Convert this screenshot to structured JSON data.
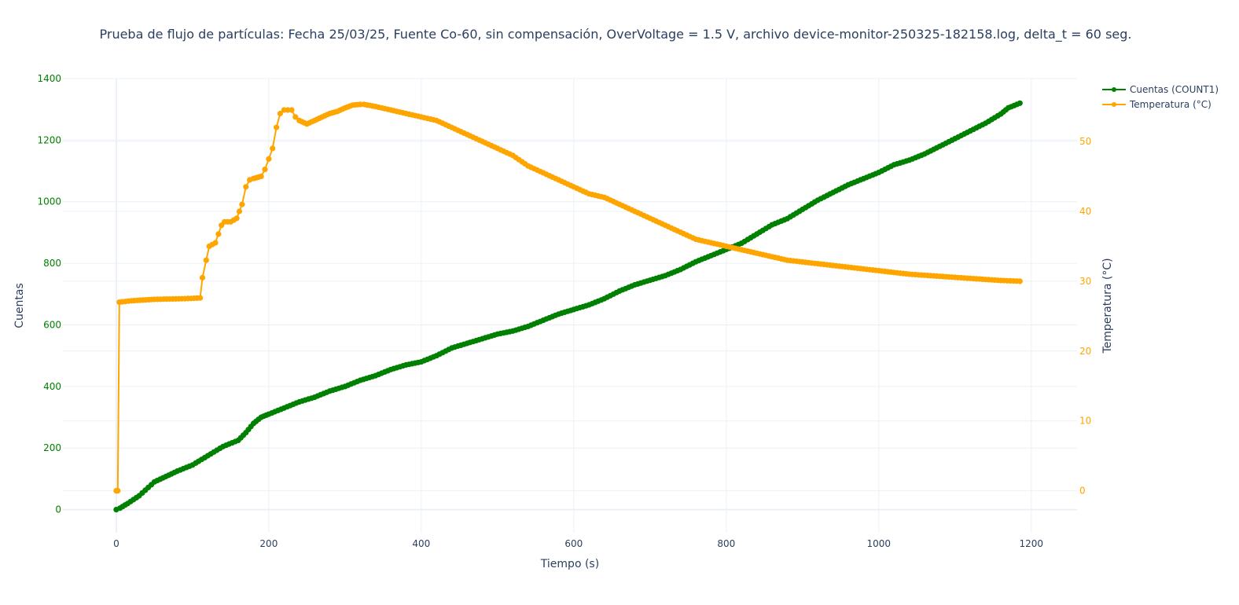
{
  "chart_data": {
    "type": "line",
    "title": "Prueba de flujo de partículas: Fecha 25/03/25, Fuente Co-60, sin compensación, OverVoltage = 1.5 V, archivo device-monitor-250325-182158.log, delta_t = 60 seg.",
    "xlabel": "Tiempo (s)",
    "ylabel": "Cuentas",
    "y2label": "Temperatura (°C)",
    "xlim": [
      -70,
      1260
    ],
    "ylim": [
      -75,
      1400
    ],
    "y2lim": [
      -6,
      59
    ],
    "x_ticks": [
      "0",
      "200",
      "400",
      "600",
      "800",
      "1000",
      "1200"
    ],
    "y_ticks": [
      "0",
      "200",
      "400",
      "600",
      "800",
      "1000",
      "1200",
      "1400"
    ],
    "y2_ticks": [
      "0",
      "10",
      "20",
      "30",
      "40",
      "50"
    ],
    "grid": true,
    "legend_position": "top-right",
    "series": [
      {
        "name": "Cuentas (COUNT1)",
        "axis": "y",
        "color": "#008000",
        "x": [
          0,
          5,
          15,
          30,
          50,
          80,
          100,
          120,
          140,
          160,
          170,
          180,
          190,
          200,
          220,
          240,
          260,
          280,
          300,
          320,
          340,
          360,
          380,
          400,
          420,
          440,
          460,
          480,
          500,
          520,
          540,
          560,
          580,
          600,
          620,
          640,
          660,
          680,
          700,
          720,
          740,
          760,
          780,
          800,
          820,
          840,
          860,
          880,
          900,
          920,
          940,
          960,
          980,
          1000,
          1020,
          1040,
          1060,
          1080,
          1100,
          1120,
          1140,
          1160,
          1170,
          1185
        ],
        "y": [
          0,
          5,
          20,
          45,
          90,
          125,
          145,
          175,
          205,
          225,
          250,
          280,
          300,
          310,
          330,
          350,
          365,
          385,
          400,
          420,
          435,
          455,
          470,
          480,
          500,
          525,
          540,
          555,
          570,
          580,
          595,
          615,
          635,
          650,
          665,
          685,
          710,
          730,
          745,
          760,
          780,
          805,
          825,
          845,
          865,
          895,
          925,
          945,
          975,
          1005,
          1030,
          1055,
          1075,
          1095,
          1120,
          1135,
          1155,
          1180,
          1205,
          1230,
          1255,
          1285,
          1305,
          1320
        ]
      },
      {
        "name": "Temperatura (°C)",
        "axis": "y2",
        "color": "#FFA500",
        "x": [
          0,
          2,
          4,
          20,
          50,
          90,
          110,
          113,
          118,
          122,
          130,
          138,
          142,
          150,
          158,
          165,
          170,
          175,
          180,
          190,
          195,
          200,
          205,
          210,
          215,
          220,
          225,
          230,
          235,
          240,
          250,
          260,
          270,
          280,
          290,
          300,
          310,
          320,
          325,
          340,
          360,
          380,
          400,
          420,
          440,
          460,
          480,
          500,
          520,
          540,
          560,
          580,
          600,
          620,
          640,
          660,
          680,
          700,
          720,
          740,
          760,
          780,
          800,
          840,
          880,
          920,
          960,
          1000,
          1040,
          1080,
          1120,
          1160,
          1185
        ],
        "y": [
          0,
          0,
          27,
          27.2,
          27.4,
          27.5,
          27.6,
          30.5,
          33,
          35,
          35.5,
          38,
          38.5,
          38.5,
          39,
          41,
          43.5,
          44.5,
          44.7,
          45,
          46,
          47.5,
          49,
          52,
          54,
          54.5,
          54.5,
          54.5,
          53.5,
          53,
          52.5,
          53,
          53.5,
          54,
          54.3,
          54.8,
          55.2,
          55.3,
          55.3,
          55,
          54.5,
          54,
          53.5,
          53,
          52,
          51,
          50,
          49,
          48,
          46.5,
          45.5,
          44.5,
          43.5,
          42.5,
          42,
          41,
          40,
          39,
          38,
          37,
          36,
          35.5,
          35,
          34,
          33,
          32.5,
          32,
          31.5,
          31,
          30.7,
          30.4,
          30.1,
          30
        ]
      }
    ]
  }
}
